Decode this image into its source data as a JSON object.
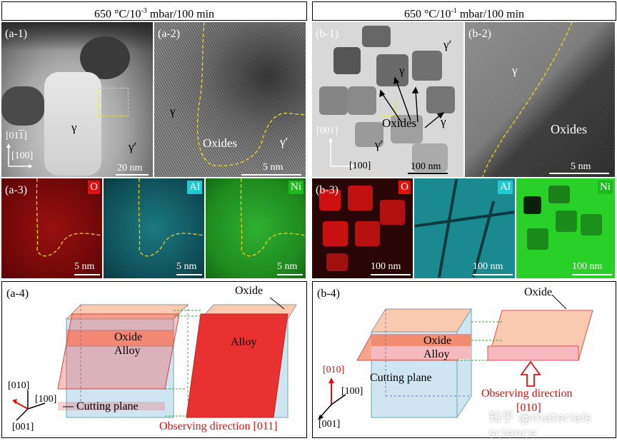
{
  "headers": {
    "a": {
      "pre": "650 °C/10",
      "exp": "-3",
      "post": " mbar/100 min"
    },
    "b": {
      "pre": "650 °C/10",
      "exp": "-1",
      "post": " mbar/100 min"
    }
  },
  "a1": {
    "label": "(a-1)",
    "gamma": "γ",
    "gamma_prime": "γ′",
    "axis_v": "[01",
    "axis_v_bar": "1",
    "axis_v_end": "]",
    "axis_h": "[100]",
    "scale": "20 nm"
  },
  "a2": {
    "label": "(a-2)",
    "gamma": "γ",
    "gamma_prime": "γ′",
    "oxides": "Oxides",
    "scale": "5 nm"
  },
  "a3": {
    "label": "(a-3)",
    "maps": [
      {
        "element": "O",
        "color": "#e01010",
        "scale": "5 nm"
      },
      {
        "element": "Al",
        "color": "#20c8d0",
        "scale": "5 nm"
      },
      {
        "element": "Ni",
        "color": "#20b820",
        "scale": "5 nm"
      }
    ]
  },
  "b1": {
    "label": "(b-1)",
    "gamma_top": "γ′",
    "gamma": "γ",
    "gamma_right": "γ",
    "gamma_prime_bottom": "γ′",
    "oxides": "Oxides",
    "axis_v": "[001]",
    "axis_h": "[100]",
    "scale": "100 nm"
  },
  "b2": {
    "label": "(b-2)",
    "gamma": "γ",
    "oxides": "Oxides",
    "scale": "5 nm"
  },
  "b3": {
    "label": "(b-3)",
    "maps": [
      {
        "element": "O",
        "color": "#e01010",
        "scale": "100 nm"
      },
      {
        "element": "Al",
        "color": "#20c8d0",
        "scale": "100 nm"
      },
      {
        "element": "Ni",
        "color": "#20b820",
        "scale": "100 nm"
      }
    ]
  },
  "a4": {
    "label": "(a-4)",
    "oxide_top": "Oxide",
    "oxide": "Oxide",
    "alloy": "Alloy",
    "alloy_big": "Alloy",
    "cutting_plane": "Cutting plane",
    "observing": "Observing direction [011]",
    "axis_010": "[010]",
    "axis_100": "[100]",
    "axis_001": "[001]"
  },
  "b4": {
    "label": "(b-4)",
    "oxide_top": "Oxide",
    "oxide": "Oxide",
    "alloy": "Alloy",
    "cutting_plane": "Cutting plane",
    "observing": "Observing direction",
    "observing_dir": "[010]",
    "axis_010": "[010]",
    "axis_100": "[100]",
    "axis_001": "[001]"
  },
  "watermark": "知乎 @materials science"
}
